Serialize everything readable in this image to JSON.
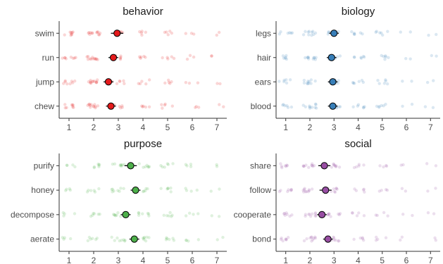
{
  "chart_data": [
    {
      "type": "scatter",
      "title": "behavior",
      "color": "#e41a1c",
      "categories": [
        "swim",
        "run",
        "jump",
        "chew"
      ],
      "means": [
        2.95,
        2.8,
        2.6,
        2.7
      ],
      "ci_halfwidth": [
        0.25,
        0.2,
        0.2,
        0.2
      ],
      "jitter_counts": {
        "1": 8,
        "2": 12,
        "3": 6,
        "4": 5,
        "5": 5,
        "6": 3,
        "7": 2
      },
      "xticks": [
        1,
        2,
        3,
        4,
        5,
        6,
        7
      ],
      "xlim": [
        0.6,
        7.4
      ]
    },
    {
      "type": "scatter",
      "title": "biology",
      "color": "#377eb8",
      "categories": [
        "legs",
        "hair",
        "ears",
        "blood"
      ],
      "means": [
        3.0,
        2.9,
        2.95,
        2.95
      ],
      "ci_halfwidth": [
        0.2,
        0.2,
        0.2,
        0.2
      ],
      "jitter_counts": {
        "1": 6,
        "2": 10,
        "3": 8,
        "4": 6,
        "5": 6,
        "6": 2,
        "7": 2
      },
      "xticks": [
        1,
        2,
        3,
        4,
        5,
        6,
        7
      ],
      "xlim": [
        0.6,
        7.4
      ]
    },
    {
      "type": "scatter",
      "title": "purpose",
      "color": "#4daf4a",
      "categories": [
        "purify",
        "honey",
        "decompose",
        "aerate"
      ],
      "means": [
        3.5,
        3.7,
        3.3,
        3.65
      ],
      "ci_halfwidth": [
        0.25,
        0.2,
        0.2,
        0.2
      ],
      "jitter_counts": {
        "1": 4,
        "2": 6,
        "3": 8,
        "4": 7,
        "5": 6,
        "6": 4,
        "7": 2
      },
      "xticks": [
        1,
        2,
        3,
        4,
        5,
        6,
        7
      ],
      "xlim": [
        0.6,
        7.4
      ]
    },
    {
      "type": "scatter",
      "title": "social",
      "color": "#984ea3",
      "categories": [
        "share",
        "follow",
        "cooperate",
        "bond"
      ],
      "means": [
        2.6,
        2.65,
        2.5,
        2.75
      ],
      "ci_halfwidth": [
        0.25,
        0.25,
        0.2,
        0.2
      ],
      "jitter_counts": {
        "1": 7,
        "2": 10,
        "3": 8,
        "4": 5,
        "5": 4,
        "6": 2,
        "7": 2
      },
      "xticks": [
        1,
        2,
        3,
        4,
        5,
        6,
        7
      ],
      "xlim": [
        0.6,
        7.4
      ]
    }
  ]
}
